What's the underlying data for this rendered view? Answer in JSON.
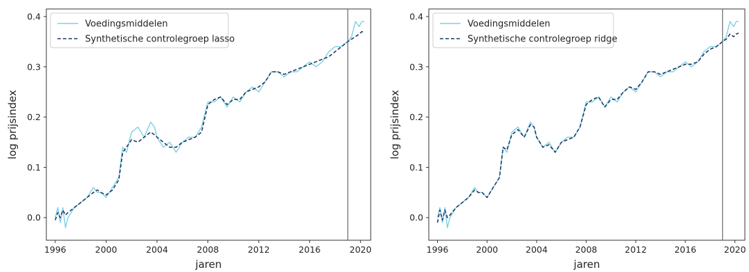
{
  "chart_data": [
    {
      "type": "line",
      "title": "",
      "xlabel": "jaren",
      "ylabel": "log prijsindex",
      "xlim": [
        1995.3,
        2020.8
      ],
      "ylim": [
        -0.045,
        0.415
      ],
      "xticks": [
        1996,
        2000,
        2004,
        2008,
        2012,
        2016,
        2020
      ],
      "xtick_labels": [
        "1996",
        "2000",
        "2004",
        "2008",
        "2012",
        "2016",
        "2020"
      ],
      "yticks": [
        0.0,
        0.1,
        0.2,
        0.3,
        0.4
      ],
      "ytick_labels": [
        "0.0",
        "0.1",
        "0.2",
        "0.3",
        "0.4"
      ],
      "vline_x": 2019.0,
      "legend_position": "upper-left",
      "grid": false,
      "series": [
        {
          "name": "Voedingsmiddelen",
          "color": "#7ecfe6",
          "style": "solid",
          "x": [
            1996.0,
            1996.2,
            1996.4,
            1996.6,
            1996.8,
            1997.0,
            1997.5,
            1998.0,
            1998.5,
            1999.0,
            1999.3,
            1999.6,
            2000.0,
            2000.5,
            2001.0,
            2001.3,
            2001.6,
            2002.0,
            2002.5,
            2003.0,
            2003.5,
            2003.8,
            2004.0,
            2004.5,
            2005.0,
            2005.5,
            2006.0,
            2006.5,
            2007.0,
            2007.5,
            2008.0,
            2008.5,
            2009.0,
            2009.5,
            2010.0,
            2010.5,
            2011.0,
            2011.5,
            2012.0,
            2012.5,
            2013.0,
            2013.5,
            2014.0,
            2014.5,
            2015.0,
            2015.5,
            2016.0,
            2016.5,
            2017.0,
            2017.5,
            2018.0,
            2018.5,
            2019.0,
            2019.3,
            2019.6,
            2019.9,
            2020.1,
            2020.3
          ],
          "y": [
            0.0,
            0.02,
            -0.01,
            0.02,
            -0.02,
            0.0,
            0.02,
            0.03,
            0.04,
            0.06,
            0.05,
            0.05,
            0.04,
            0.06,
            0.08,
            0.14,
            0.13,
            0.17,
            0.18,
            0.16,
            0.19,
            0.18,
            0.16,
            0.14,
            0.15,
            0.13,
            0.15,
            0.16,
            0.16,
            0.18,
            0.23,
            0.23,
            0.24,
            0.22,
            0.24,
            0.23,
            0.25,
            0.26,
            0.25,
            0.27,
            0.29,
            0.29,
            0.28,
            0.29,
            0.29,
            0.3,
            0.31,
            0.3,
            0.31,
            0.33,
            0.34,
            0.34,
            0.35,
            0.36,
            0.39,
            0.38,
            0.39,
            0.39
          ]
        },
        {
          "name": "Synthetische controlegroep lasso",
          "color": "#1c3a63",
          "style": "dashed",
          "x": [
            1996.0,
            1996.2,
            1996.4,
            1996.6,
            1996.8,
            1997.0,
            1997.5,
            1998.0,
            1998.5,
            1999.0,
            1999.3,
            1999.6,
            2000.0,
            2000.5,
            2001.0,
            2001.3,
            2001.6,
            2002.0,
            2002.5,
            2003.0,
            2003.5,
            2003.8,
            2004.0,
            2004.5,
            2005.0,
            2005.5,
            2006.0,
            2006.5,
            2007.0,
            2007.5,
            2008.0,
            2008.5,
            2009.0,
            2009.5,
            2010.0,
            2010.5,
            2011.0,
            2011.5,
            2012.0,
            2012.5,
            2013.0,
            2013.5,
            2014.0,
            2014.5,
            2015.0,
            2015.5,
            2016.0,
            2016.5,
            2017.0,
            2017.5,
            2018.0,
            2018.5,
            2019.0,
            2019.3,
            2019.6,
            2019.9,
            2020.1,
            2020.3
          ],
          "y": [
            -0.005,
            0.01,
            0.0,
            0.015,
            0.005,
            0.01,
            0.02,
            0.03,
            0.04,
            0.05,
            0.055,
            0.05,
            0.045,
            0.055,
            0.075,
            0.13,
            0.14,
            0.155,
            0.15,
            0.16,
            0.17,
            0.165,
            0.16,
            0.15,
            0.14,
            0.14,
            0.15,
            0.155,
            0.16,
            0.17,
            0.225,
            0.235,
            0.24,
            0.225,
            0.235,
            0.235,
            0.25,
            0.255,
            0.26,
            0.27,
            0.29,
            0.29,
            0.285,
            0.29,
            0.295,
            0.3,
            0.305,
            0.31,
            0.315,
            0.32,
            0.33,
            0.34,
            0.35,
            0.355,
            0.36,
            0.365,
            0.37,
            0.368
          ]
        }
      ]
    },
    {
      "type": "line",
      "title": "",
      "xlabel": "jaren",
      "ylabel": "log prijsindex",
      "xlim": [
        1995.3,
        2020.8
      ],
      "ylim": [
        -0.045,
        0.415
      ],
      "xticks": [
        1996,
        2000,
        2004,
        2008,
        2012,
        2016,
        2020
      ],
      "xtick_labels": [
        "1996",
        "2000",
        "2004",
        "2008",
        "2012",
        "2016",
        "2020"
      ],
      "yticks": [
        0.0,
        0.1,
        0.2,
        0.3,
        0.4
      ],
      "ytick_labels": [
        "0.0",
        "0.1",
        "0.2",
        "0.3",
        "0.4"
      ],
      "vline_x": 2019.0,
      "legend_position": "upper-left",
      "grid": false,
      "series": [
        {
          "name": "Voedingsmiddelen",
          "color": "#7ecfe6",
          "style": "solid",
          "x": [
            1996.0,
            1996.2,
            1996.4,
            1996.6,
            1996.8,
            1997.0,
            1997.5,
            1998.0,
            1998.5,
            1999.0,
            1999.3,
            1999.6,
            2000.0,
            2000.5,
            2001.0,
            2001.3,
            2001.6,
            2002.0,
            2002.5,
            2003.0,
            2003.5,
            2003.8,
            2004.0,
            2004.5,
            2005.0,
            2005.5,
            2006.0,
            2006.5,
            2007.0,
            2007.5,
            2008.0,
            2008.5,
            2009.0,
            2009.5,
            2010.0,
            2010.5,
            2011.0,
            2011.5,
            2012.0,
            2012.5,
            2013.0,
            2013.5,
            2014.0,
            2014.5,
            2015.0,
            2015.5,
            2016.0,
            2016.5,
            2017.0,
            2017.5,
            2018.0,
            2018.5,
            2019.0,
            2019.3,
            2019.6,
            2019.9,
            2020.1,
            2020.3
          ],
          "y": [
            0.0,
            0.02,
            -0.01,
            0.02,
            -0.02,
            0.0,
            0.02,
            0.03,
            0.04,
            0.06,
            0.05,
            0.05,
            0.04,
            0.06,
            0.08,
            0.14,
            0.13,
            0.17,
            0.18,
            0.16,
            0.19,
            0.18,
            0.16,
            0.14,
            0.15,
            0.13,
            0.15,
            0.16,
            0.16,
            0.18,
            0.23,
            0.23,
            0.24,
            0.22,
            0.24,
            0.23,
            0.25,
            0.26,
            0.25,
            0.27,
            0.29,
            0.29,
            0.28,
            0.29,
            0.29,
            0.3,
            0.31,
            0.3,
            0.31,
            0.33,
            0.34,
            0.34,
            0.35,
            0.36,
            0.39,
            0.38,
            0.39,
            0.39
          ]
        },
        {
          "name": "Synthetische controlegroep ridge",
          "color": "#1c3a63",
          "style": "dashed",
          "x": [
            1996.0,
            1996.2,
            1996.4,
            1996.6,
            1996.8,
            1997.0,
            1997.5,
            1998.0,
            1998.5,
            1999.0,
            1999.3,
            1999.6,
            2000.0,
            2000.5,
            2001.0,
            2001.3,
            2001.6,
            2002.0,
            2002.5,
            2003.0,
            2003.5,
            2003.8,
            2004.0,
            2004.5,
            2005.0,
            2005.5,
            2006.0,
            2006.5,
            2007.0,
            2007.5,
            2008.0,
            2008.5,
            2009.0,
            2009.5,
            2010.0,
            2010.5,
            2011.0,
            2011.5,
            2012.0,
            2012.5,
            2013.0,
            2013.5,
            2014.0,
            2014.5,
            2015.0,
            2015.5,
            2016.0,
            2016.5,
            2017.0,
            2017.5,
            2018.0,
            2018.5,
            2019.0,
            2019.3,
            2019.6,
            2019.9,
            2020.1,
            2020.3
          ],
          "y": [
            -0.01,
            0.015,
            -0.005,
            0.015,
            0.0,
            0.005,
            0.02,
            0.03,
            0.04,
            0.055,
            0.05,
            0.05,
            0.04,
            0.06,
            0.08,
            0.14,
            0.135,
            0.165,
            0.175,
            0.16,
            0.185,
            0.18,
            0.16,
            0.14,
            0.145,
            0.13,
            0.15,
            0.155,
            0.16,
            0.18,
            0.225,
            0.235,
            0.24,
            0.22,
            0.235,
            0.235,
            0.25,
            0.26,
            0.255,
            0.27,
            0.29,
            0.29,
            0.285,
            0.29,
            0.295,
            0.3,
            0.305,
            0.305,
            0.31,
            0.325,
            0.335,
            0.34,
            0.35,
            0.355,
            0.365,
            0.36,
            0.365,
            0.367
          ]
        }
      ]
    }
  ]
}
